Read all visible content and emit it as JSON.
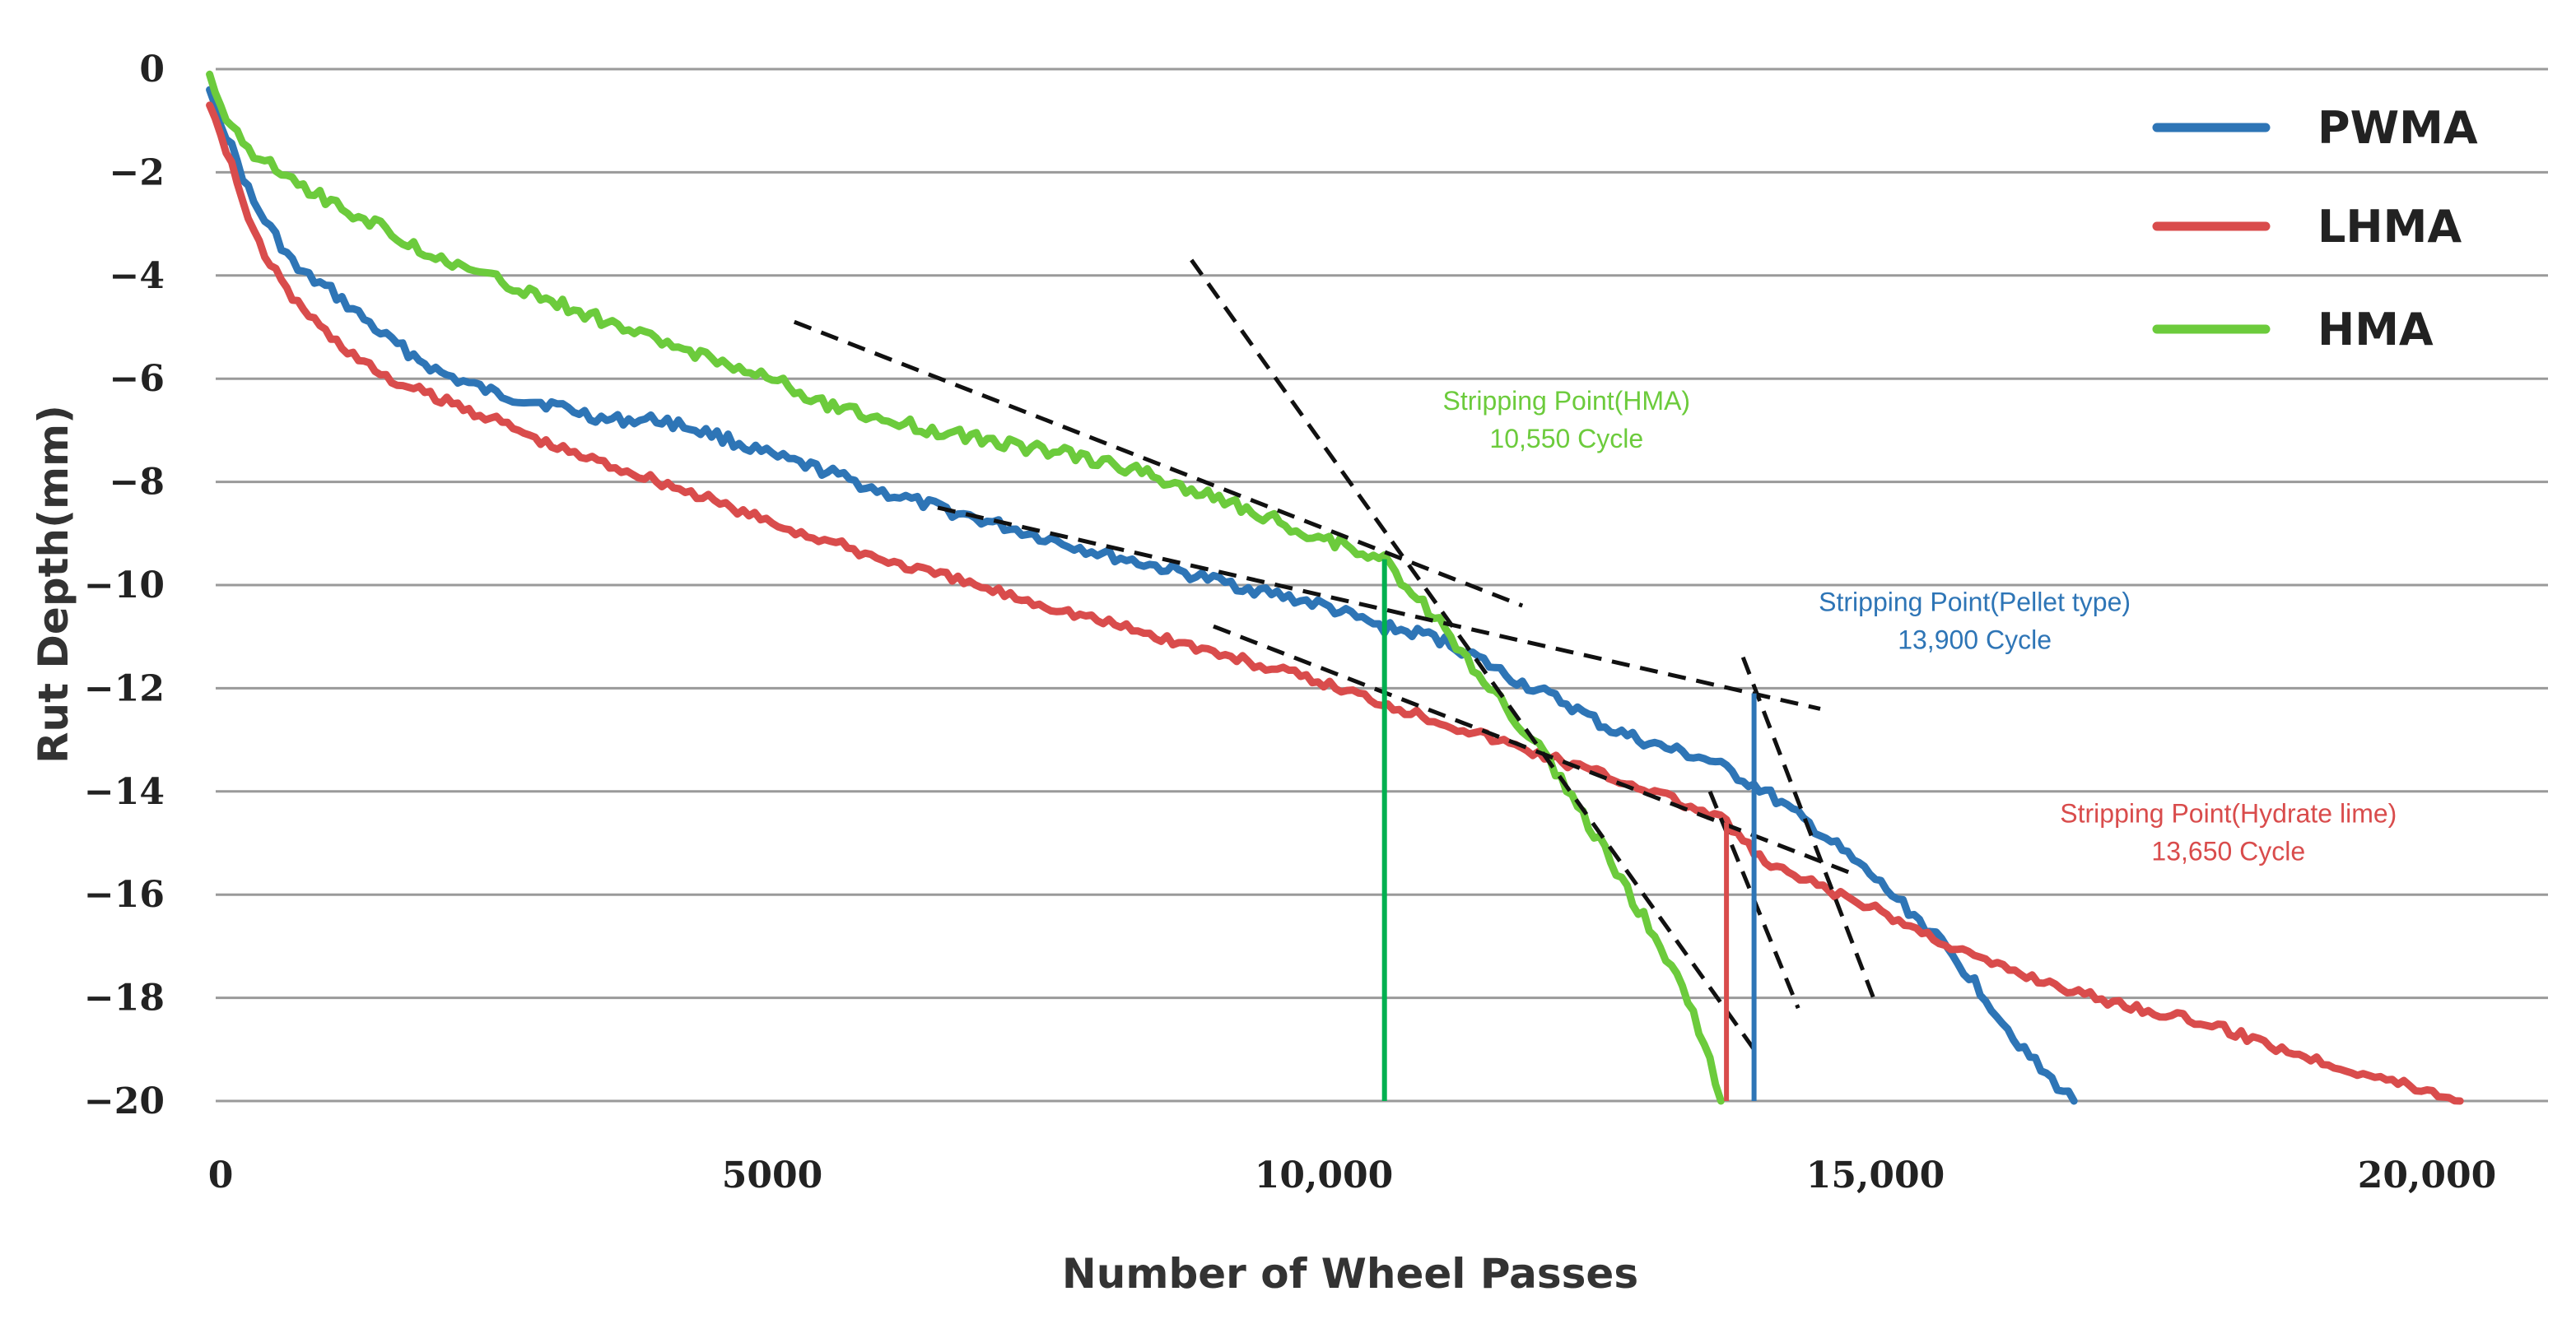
{
  "chart_data": {
    "type": "line",
    "xlabel": "Number of Wheel Passes",
    "ylabel": "Rut Depth(mm)",
    "xlim": [
      0,
      20000
    ],
    "ylim": [
      -20,
      0
    ],
    "x_ticks": [
      {
        "value": 0,
        "label": "0"
      },
      {
        "value": 5000,
        "label": "5000"
      },
      {
        "value": 10000,
        "label": "10,000"
      },
      {
        "value": 15000,
        "label": "15,000"
      },
      {
        "value": 20000,
        "label": "20,000"
      }
    ],
    "y_ticks": [
      {
        "value": 0,
        "label": "0"
      },
      {
        "value": -2,
        "label": "−2"
      },
      {
        "value": -4,
        "label": "−4"
      },
      {
        "value": -6,
        "label": "−6"
      },
      {
        "value": -8,
        "label": "−8"
      },
      {
        "value": -10,
        "label": "−10"
      },
      {
        "value": -12,
        "label": "−12"
      },
      {
        "value": -14,
        "label": "−14"
      },
      {
        "value": -16,
        "label": "−16"
      },
      {
        "value": -18,
        "label": "−18"
      },
      {
        "value": -20,
        "label": "−20"
      }
    ],
    "grid": "horizontal",
    "legend_position": "top-right",
    "series": [
      {
        "name": "PWMA",
        "color": "#2e75b6",
        "points": [
          [
            -100,
            -0.4
          ],
          [
            0,
            -1.0
          ],
          [
            300,
            -2.6
          ],
          [
            700,
            -3.9
          ],
          [
            1000,
            -4.3
          ],
          [
            1500,
            -5.2
          ],
          [
            2000,
            -5.9
          ],
          [
            2500,
            -6.3
          ],
          [
            3000,
            -6.5
          ],
          [
            3500,
            -6.8
          ],
          [
            4000,
            -6.8
          ],
          [
            4500,
            -7.1
          ],
          [
            5000,
            -7.5
          ],
          [
            5500,
            -7.8
          ],
          [
            6000,
            -8.2
          ],
          [
            7000,
            -8.8
          ],
          [
            8000,
            -9.4
          ],
          [
            9000,
            -9.9
          ],
          [
            10000,
            -10.4
          ],
          [
            10500,
            -10.8
          ],
          [
            11000,
            -11.0
          ],
          [
            11300,
            -11.3
          ],
          [
            11700,
            -11.8
          ],
          [
            12200,
            -12.3
          ],
          [
            12600,
            -12.8
          ],
          [
            13000,
            -13.1
          ],
          [
            13500,
            -13.4
          ],
          [
            14000,
            -14.0
          ],
          [
            14500,
            -14.8
          ],
          [
            15000,
            -15.7
          ],
          [
            15500,
            -16.7
          ],
          [
            15900,
            -17.7
          ],
          [
            16200,
            -18.6
          ],
          [
            16500,
            -19.4
          ],
          [
            16800,
            -20.0
          ]
        ]
      },
      {
        "name": "LHMA",
        "color": "#d94c4c",
        "points": [
          [
            -100,
            -0.7
          ],
          [
            0,
            -1.2
          ],
          [
            300,
            -3.2
          ],
          [
            600,
            -4.3
          ],
          [
            1000,
            -5.2
          ],
          [
            1500,
            -6.0
          ],
          [
            2000,
            -6.4
          ],
          [
            2500,
            -6.8
          ],
          [
            3000,
            -7.3
          ],
          [
            4000,
            -8.0
          ],
          [
            5000,
            -8.8
          ],
          [
            6000,
            -9.5
          ],
          [
            7000,
            -10.1
          ],
          [
            8000,
            -10.7
          ],
          [
            9000,
            -11.3
          ],
          [
            10000,
            -11.9
          ],
          [
            11000,
            -12.6
          ],
          [
            12000,
            -13.3
          ],
          [
            13000,
            -14.0
          ],
          [
            13650,
            -14.6
          ],
          [
            14000,
            -15.4
          ],
          [
            15000,
            -16.3
          ],
          [
            16000,
            -17.3
          ],
          [
            17000,
            -18.0
          ],
          [
            18000,
            -18.5
          ],
          [
            19000,
            -19.2
          ],
          [
            20000,
            -19.8
          ],
          [
            20300,
            -20.0
          ]
        ]
      },
      {
        "name": "HMA",
        "color": "#6ccb3c",
        "points": [
          [
            -100,
            -0.1
          ],
          [
            0,
            -0.8
          ],
          [
            300,
            -1.6
          ],
          [
            700,
            -2.2
          ],
          [
            1000,
            -2.6
          ],
          [
            1500,
            -3.1
          ],
          [
            2000,
            -3.7
          ],
          [
            2500,
            -4.1
          ],
          [
            3000,
            -4.5
          ],
          [
            3500,
            -4.9
          ],
          [
            4000,
            -5.3
          ],
          [
            4500,
            -5.6
          ],
          [
            5000,
            -6.0
          ],
          [
            5500,
            -6.5
          ],
          [
            6000,
            -6.8
          ],
          [
            6500,
            -7.0
          ],
          [
            7000,
            -7.2
          ],
          [
            7500,
            -7.4
          ],
          [
            8000,
            -7.6
          ],
          [
            8500,
            -7.9
          ],
          [
            9000,
            -8.3
          ],
          [
            9500,
            -8.7
          ],
          [
            10000,
            -9.1
          ],
          [
            10550,
            -9.5
          ],
          [
            11000,
            -10.6
          ],
          [
            11500,
            -12.0
          ],
          [
            12000,
            -13.3
          ],
          [
            12500,
            -15.0
          ],
          [
            13000,
            -16.8
          ],
          [
            13300,
            -18.0
          ],
          [
            13500,
            -19.2
          ],
          [
            13600,
            -20.0
          ]
        ]
      }
    ],
    "stripping_points": [
      {
        "series": "HMA",
        "x": 10550,
        "y": -9.5,
        "color": "#00b050",
        "title": "Stripping Point(HMA)",
        "cycle": "10,550   Cycle",
        "label_x": 12200,
        "label_y_top": -6.6
      },
      {
        "series": "PWMA",
        "x": 13900,
        "y": -12.1,
        "color": "#2e75b6",
        "title": "Stripping Point(Pellet type)",
        "cycle": "13,900   Cycle",
        "label_x": 15900,
        "label_y_top": -10.5
      },
      {
        "series": "LHMA",
        "x": 13650,
        "y": -14.6,
        "color": "#d94c4c",
        "title": "Stripping Point(Hydrate lime)",
        "cycle": "13,650   Cycle",
        "label_x": 18200,
        "label_y_top": -14.6
      }
    ],
    "tangent_lines": [
      {
        "from": [
          5200,
          -4.9
        ],
        "to": [
          11800,
          -10.4
        ]
      },
      {
        "from": [
          8800,
          -3.7
        ],
        "to": [
          13900,
          -19.0
        ]
      },
      {
        "from": [
          6500,
          -8.5
        ],
        "to": [
          14500,
          -12.4
        ]
      },
      {
        "from": [
          13800,
          -11.4
        ],
        "to": [
          15000,
          -18.1
        ]
      },
      {
        "from": [
          9000,
          -10.8
        ],
        "to": [
          14800,
          -15.6
        ]
      },
      {
        "from": [
          13500,
          -14.0
        ],
        "to": [
          14300,
          -18.2
        ]
      }
    ]
  }
}
